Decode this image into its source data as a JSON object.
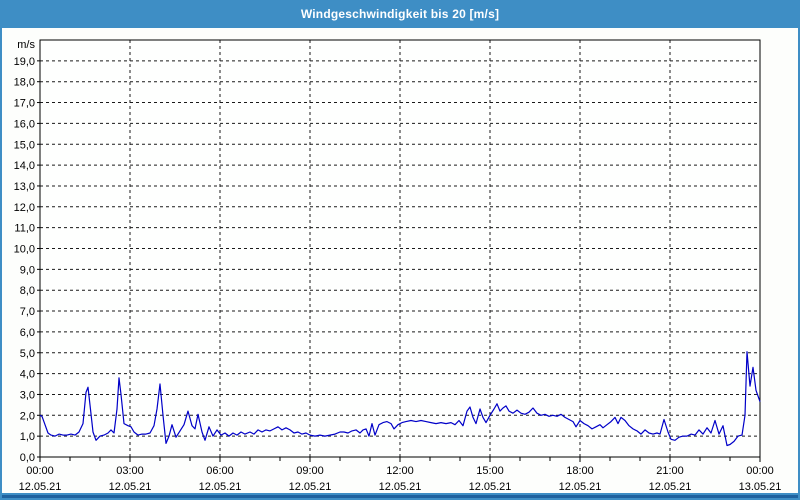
{
  "window": {
    "title": "Windgeschwindigkeit bis 20 [m/s]"
  },
  "colors": {
    "titlebar_bg": "#3E8EC5",
    "titlebar_text": "#FFFFFF",
    "window_border": "#3E8EC5",
    "bottom_bar": "#1F629F",
    "bottom_bar_edge": "#3E8EC5",
    "page_bg": "#FDFEFC",
    "plot_bg": "#FEFFFE",
    "axis": "#000000",
    "grid": "#1A1A1A",
    "label_text": "#000000",
    "series_line": "#0000C8"
  },
  "chart_data": {
    "type": "line",
    "title": "Windgeschwindigkeit bis 20 [m/s]",
    "ylabel": "m/s",
    "xlabel": "",
    "ylim": [
      0,
      20
    ],
    "ytick_step": 1,
    "ytick_labels": [
      "0,0",
      "1,0",
      "2,0",
      "3,0",
      "4,0",
      "5,0",
      "6,0",
      "7,0",
      "8,0",
      "9,0",
      "10,0",
      "11,0",
      "12,0",
      "13,0",
      "14,0",
      "15,0",
      "16,0",
      "17,0",
      "18,0",
      "19,0"
    ],
    "grid": "dashed",
    "legend_position": "none",
    "x_minutes_range": [
      0,
      1440
    ],
    "x_minor_tick_every_minutes": 60,
    "x_major_ticks": [
      {
        "minute": 0,
        "time": "00:00",
        "date": "12.05.21"
      },
      {
        "minute": 180,
        "time": "03:00",
        "date": "12.05.21"
      },
      {
        "minute": 360,
        "time": "06:00",
        "date": "12.05.21"
      },
      {
        "minute": 540,
        "time": "09:00",
        "date": "12.05.21"
      },
      {
        "minute": 720,
        "time": "12:00",
        "date": "12.05.21"
      },
      {
        "minute": 900,
        "time": "15:00",
        "date": "12.05.21"
      },
      {
        "minute": 1080,
        "time": "18:00",
        "date": "12.05.21"
      },
      {
        "minute": 1260,
        "time": "21:00",
        "date": "12.05.21"
      },
      {
        "minute": 1440,
        "time": "00:00",
        "date": "13.05.21"
      }
    ],
    "series": [
      {
        "name": "Windgeschwindigkeit [m/s]",
        "color": "#0000C8",
        "points": [
          [
            0,
            2.0
          ],
          [
            4,
            1.95
          ],
          [
            10,
            1.55
          ],
          [
            16,
            1.15
          ],
          [
            22,
            1.05
          ],
          [
            30,
            1.0
          ],
          [
            38,
            1.1
          ],
          [
            46,
            1.05
          ],
          [
            54,
            1.05
          ],
          [
            62,
            1.1
          ],
          [
            70,
            1.05
          ],
          [
            78,
            1.2
          ],
          [
            86,
            1.6
          ],
          [
            92,
            3.1
          ],
          [
            96,
            3.35
          ],
          [
            100,
            2.5
          ],
          [
            106,
            1.2
          ],
          [
            112,
            0.8
          ],
          [
            120,
            1.0
          ],
          [
            128,
            1.05
          ],
          [
            136,
            1.15
          ],
          [
            142,
            1.3
          ],
          [
            148,
            1.15
          ],
          [
            154,
            2.3
          ],
          [
            158,
            3.8
          ],
          [
            162,
            3.0
          ],
          [
            168,
            1.6
          ],
          [
            176,
            1.5
          ],
          [
            182,
            1.45
          ],
          [
            188,
            1.2
          ],
          [
            196,
            1.05
          ],
          [
            204,
            1.1
          ],
          [
            212,
            1.1
          ],
          [
            220,
            1.15
          ],
          [
            228,
            1.5
          ],
          [
            234,
            2.3
          ],
          [
            240,
            3.5
          ],
          [
            246,
            2.0
          ],
          [
            252,
            0.65
          ],
          [
            258,
            1.0
          ],
          [
            264,
            1.55
          ],
          [
            272,
            0.95
          ],
          [
            280,
            1.25
          ],
          [
            288,
            1.55
          ],
          [
            296,
            2.2
          ],
          [
            304,
            1.5
          ],
          [
            310,
            1.35
          ],
          [
            316,
            2.05
          ],
          [
            324,
            1.2
          ],
          [
            330,
            0.8
          ],
          [
            338,
            1.45
          ],
          [
            346,
            1.0
          ],
          [
            354,
            1.3
          ],
          [
            362,
            1.05
          ],
          [
            370,
            1.15
          ],
          [
            378,
            1.0
          ],
          [
            386,
            1.15
          ],
          [
            394,
            1.05
          ],
          [
            402,
            1.2
          ],
          [
            410,
            1.1
          ],
          [
            420,
            1.2
          ],
          [
            428,
            1.1
          ],
          [
            436,
            1.3
          ],
          [
            444,
            1.2
          ],
          [
            452,
            1.3
          ],
          [
            460,
            1.25
          ],
          [
            468,
            1.35
          ],
          [
            476,
            1.45
          ],
          [
            484,
            1.3
          ],
          [
            492,
            1.4
          ],
          [
            500,
            1.3
          ],
          [
            508,
            1.15
          ],
          [
            516,
            1.2
          ],
          [
            524,
            1.1
          ],
          [
            532,
            1.15
          ],
          [
            540,
            1.05
          ],
          [
            550,
            1.0
          ],
          [
            560,
            1.05
          ],
          [
            570,
            1.0
          ],
          [
            580,
            1.05
          ],
          [
            590,
            1.1
          ],
          [
            600,
            1.2
          ],
          [
            608,
            1.2
          ],
          [
            616,
            1.15
          ],
          [
            624,
            1.25
          ],
          [
            632,
            1.3
          ],
          [
            640,
            1.15
          ],
          [
            646,
            1.3
          ],
          [
            652,
            1.35
          ],
          [
            658,
            1.0
          ],
          [
            664,
            1.6
          ],
          [
            670,
            1.05
          ],
          [
            678,
            1.55
          ],
          [
            686,
            1.65
          ],
          [
            694,
            1.7
          ],
          [
            702,
            1.6
          ],
          [
            708,
            1.35
          ],
          [
            716,
            1.55
          ],
          [
            724,
            1.65
          ],
          [
            732,
            1.7
          ],
          [
            742,
            1.75
          ],
          [
            752,
            1.7
          ],
          [
            762,
            1.75
          ],
          [
            772,
            1.7
          ],
          [
            782,
            1.65
          ],
          [
            792,
            1.6
          ],
          [
            802,
            1.65
          ],
          [
            812,
            1.6
          ],
          [
            822,
            1.65
          ],
          [
            830,
            1.55
          ],
          [
            838,
            1.75
          ],
          [
            846,
            1.5
          ],
          [
            854,
            2.2
          ],
          [
            860,
            2.4
          ],
          [
            866,
            1.9
          ],
          [
            872,
            1.6
          ],
          [
            880,
            2.3
          ],
          [
            886,
            1.9
          ],
          [
            892,
            1.65
          ],
          [
            900,
            2.0
          ],
          [
            908,
            2.3
          ],
          [
            914,
            2.55
          ],
          [
            920,
            2.2
          ],
          [
            926,
            2.35
          ],
          [
            932,
            2.45
          ],
          [
            938,
            2.2
          ],
          [
            946,
            2.1
          ],
          [
            954,
            2.25
          ],
          [
            962,
            2.1
          ],
          [
            970,
            2.05
          ],
          [
            978,
            2.15
          ],
          [
            986,
            2.35
          ],
          [
            994,
            2.1
          ],
          [
            1002,
            2.0
          ],
          [
            1010,
            2.05
          ],
          [
            1018,
            1.95
          ],
          [
            1026,
            2.0
          ],
          [
            1034,
            1.95
          ],
          [
            1042,
            2.05
          ],
          [
            1050,
            1.9
          ],
          [
            1058,
            1.8
          ],
          [
            1066,
            1.7
          ],
          [
            1072,
            1.45
          ],
          [
            1080,
            1.75
          ],
          [
            1088,
            1.6
          ],
          [
            1096,
            1.5
          ],
          [
            1104,
            1.35
          ],
          [
            1112,
            1.45
          ],
          [
            1120,
            1.55
          ],
          [
            1126,
            1.4
          ],
          [
            1134,
            1.55
          ],
          [
            1142,
            1.7
          ],
          [
            1150,
            1.9
          ],
          [
            1156,
            1.6
          ],
          [
            1162,
            1.9
          ],
          [
            1170,
            1.75
          ],
          [
            1178,
            1.5
          ],
          [
            1186,
            1.35
          ],
          [
            1194,
            1.25
          ],
          [
            1202,
            1.1
          ],
          [
            1210,
            1.3
          ],
          [
            1218,
            1.15
          ],
          [
            1226,
            1.1
          ],
          [
            1234,
            1.15
          ],
          [
            1240,
            1.1
          ],
          [
            1248,
            1.8
          ],
          [
            1256,
            1.2
          ],
          [
            1262,
            0.85
          ],
          [
            1270,
            0.8
          ],
          [
            1278,
            0.95
          ],
          [
            1286,
            1.0
          ],
          [
            1294,
            1.0
          ],
          [
            1302,
            1.1
          ],
          [
            1310,
            1.05
          ],
          [
            1318,
            1.3
          ],
          [
            1326,
            1.1
          ],
          [
            1334,
            1.4
          ],
          [
            1342,
            1.15
          ],
          [
            1350,
            1.75
          ],
          [
            1358,
            1.1
          ],
          [
            1366,
            1.5
          ],
          [
            1374,
            0.55
          ],
          [
            1380,
            0.6
          ],
          [
            1388,
            0.75
          ],
          [
            1396,
            1.0
          ],
          [
            1404,
            1.05
          ],
          [
            1410,
            2.0
          ],
          [
            1414,
            5.05
          ],
          [
            1420,
            3.4
          ],
          [
            1426,
            4.3
          ],
          [
            1432,
            3.2
          ],
          [
            1440,
            2.65
          ]
        ]
      }
    ]
  }
}
